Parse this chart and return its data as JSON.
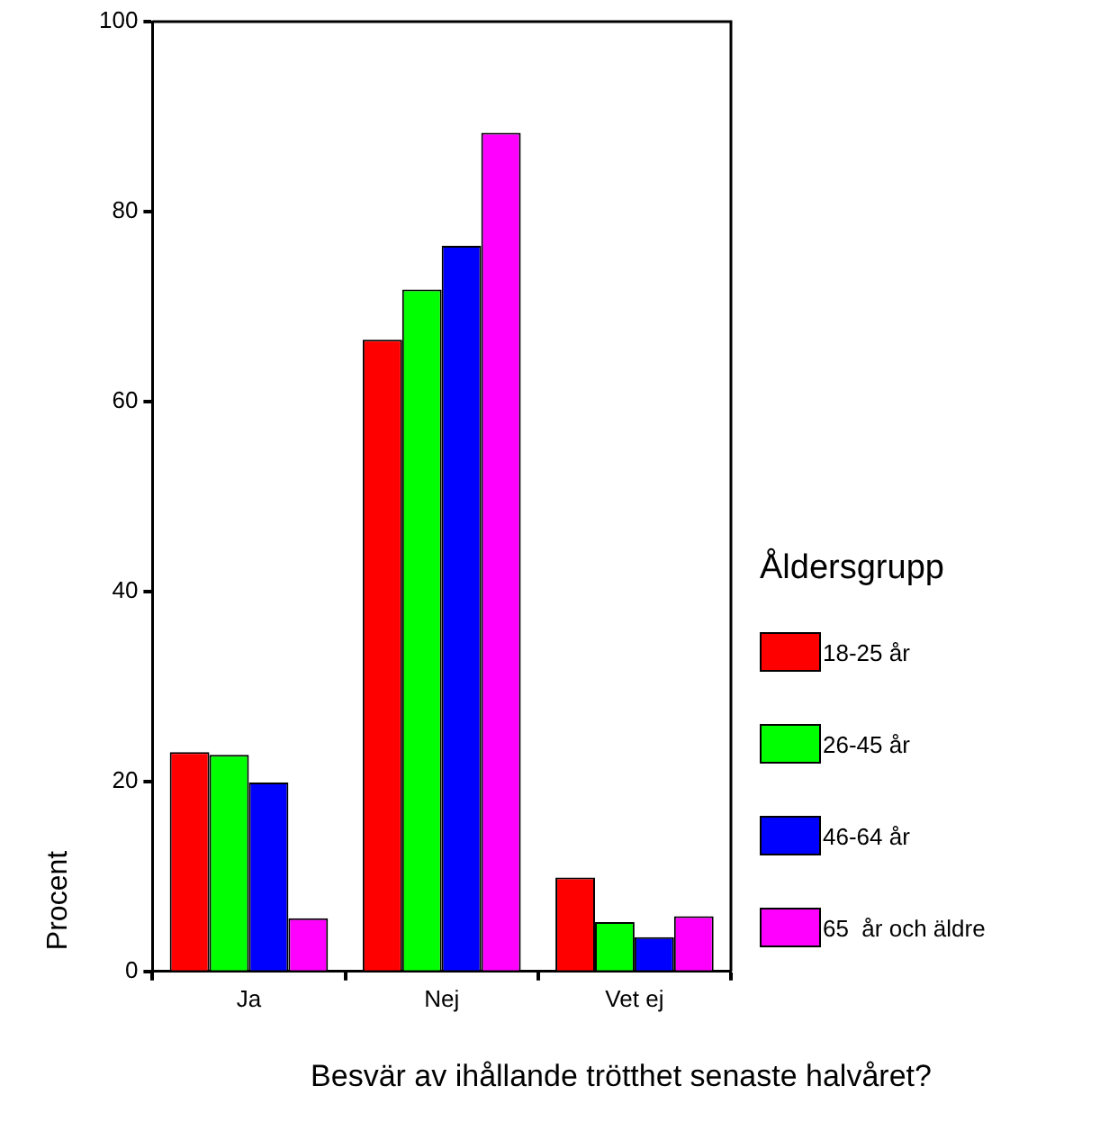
{
  "chart_data": {
    "type": "bar",
    "xlabel": "Besvär av ihållande trötthet senaste halvåret?",
    "ylabel": "Procent",
    "legend_title": "Åldersgrupp",
    "legend": "right",
    "grid": false,
    "categories": [
      "Ja",
      "Nej",
      "Vet ej"
    ],
    "ylim": [
      0,
      100
    ],
    "yticks": [
      0,
      20,
      40,
      60,
      80,
      100
    ],
    "series": [
      {
        "name": "18-25 år",
        "color": "#ff0000",
        "values": [
          23.1,
          66.5,
          9.9
        ]
      },
      {
        "name": "26-45 år",
        "color": "#00ff00",
        "values": [
          22.8,
          71.8,
          5.2
        ]
      },
      {
        "name": "46-64 år",
        "color": "#0000ff",
        "values": [
          19.9,
          76.4,
          3.6
        ]
      },
      {
        "name": "65  år och äldre",
        "color": "#ff00ff",
        "values": [
          5.6,
          88.3,
          5.8
        ]
      }
    ]
  }
}
